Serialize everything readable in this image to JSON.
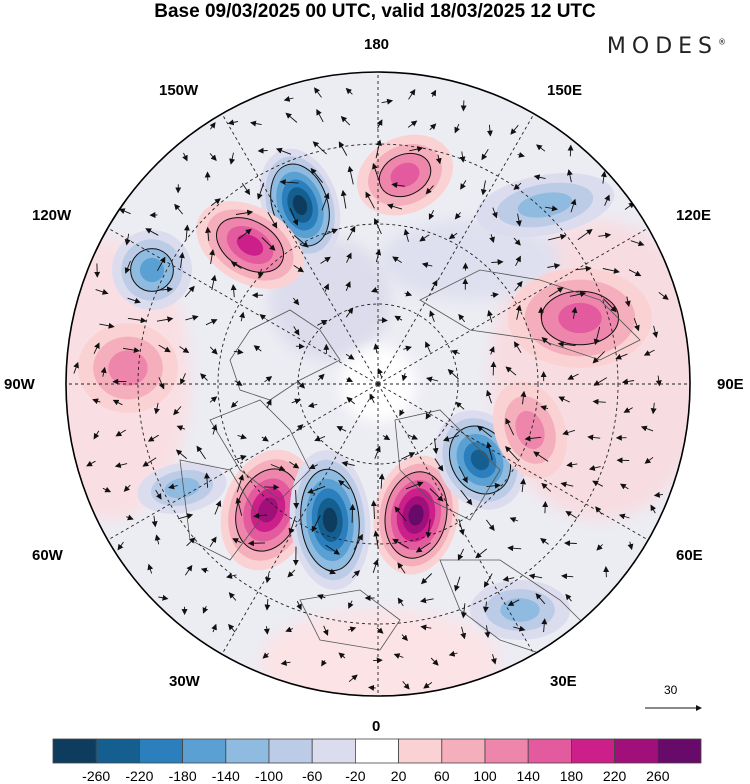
{
  "title": "Base 09/03/2025 00 UTC, valid 18/03/2025 12 UTC",
  "brand": "MODES",
  "brand_mark": "®",
  "lon_labels": {
    "n180": "180",
    "w150": "150W",
    "e150": "150E",
    "w120": "120W",
    "e120": "120E",
    "w90": "90W",
    "e90": "90E",
    "w60": "60W",
    "e60": "60E",
    "w30": "30W",
    "e30": "30E",
    "s0": "0"
  },
  "vector_scale": "30",
  "colorbar": {
    "ticks": [
      "-260",
      "-220",
      "-180",
      "-140",
      "-100",
      "-60",
      "-20",
      "20",
      "60",
      "100",
      "140",
      "180",
      "220",
      "260"
    ],
    "colors": [
      "#0e3c5e",
      "#145f90",
      "#2b7fbd",
      "#5aa0d2",
      "#8fbbe0",
      "#bccbe6",
      "#dcdcef",
      "#ffffff",
      "#fbd2d3",
      "#f5aebb",
      "#ee86ac",
      "#e35a9e",
      "#cc1f8a",
      "#a00f7a",
      "#680a6a"
    ]
  },
  "anomalies": [
    {
      "sign": "neg",
      "level": 6
    },
    {
      "sign": "pos",
      "level": 4
    },
    {
      "sign": "neg",
      "level": 3
    },
    {
      "sign": "pos",
      "level": 3
    },
    {
      "sign": "pos",
      "level": 2
    },
    {
      "sign": "neg",
      "level": 2
    },
    {
      "sign": "pos",
      "level": 5
    },
    {
      "sign": "neg",
      "level": 6
    },
    {
      "sign": "pos",
      "level": 6
    },
    {
      "sign": "neg",
      "level": 5
    },
    {
      "sign": "pos",
      "level": 3
    },
    {
      "sign": "pos",
      "level": 2
    },
    {
      "sign": "neg",
      "level": 2
    },
    {
      "sign": "neg",
      "level": 2
    }
  ]
}
